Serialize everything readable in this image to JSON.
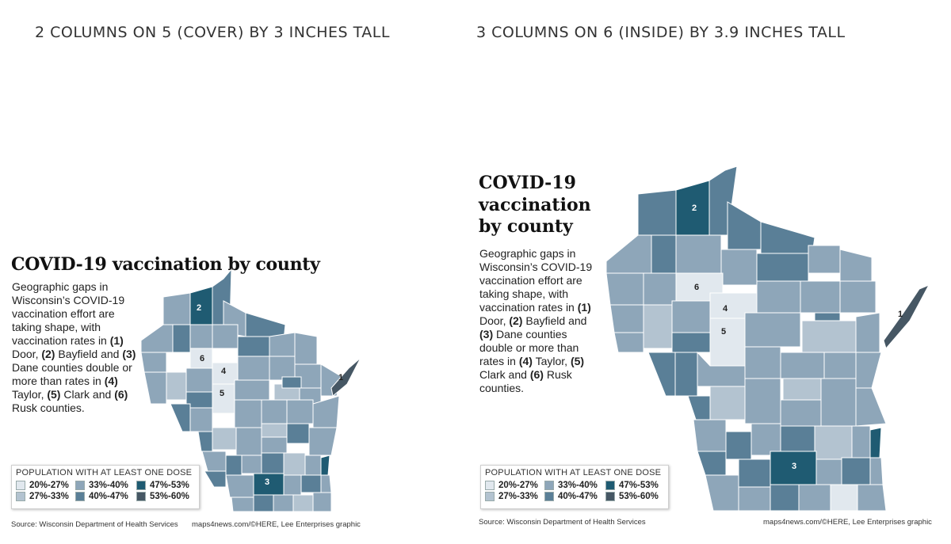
{
  "left_panel": {
    "heading": "2 COLUMNS ON 5 (COVER) BY 3 INCHES TALL",
    "title": "COVID-19 vaccination by county",
    "description": [
      {
        "t": "Geographic gaps in Wisconsin’s COVID-19 vaccination effort are taking shape, with vaccination rates in ",
        "b": false
      },
      {
        "t": "(1)",
        "b": true
      },
      {
        "t": " Door, ",
        "b": false
      },
      {
        "t": "(2)",
        "b": true
      },
      {
        "t": " Bayfield and ",
        "b": false
      },
      {
        "t": "(3)",
        "b": true
      },
      {
        "t": " Dane counties double or more than rates in ",
        "b": false
      },
      {
        "t": "(4)",
        "b": true
      },
      {
        "t": " Taylor, ",
        "b": false
      },
      {
        "t": "(5)",
        "b": true
      },
      {
        "t": " Clark and ",
        "b": false
      },
      {
        "t": "(6)",
        "b": true
      },
      {
        "t": " Rusk counties.",
        "b": false
      }
    ],
    "legend_title": "POPULATION WITH AT LEAST ONE DOSE",
    "source": "Source: Wisconsin Department of Health Services",
    "credit": "maps4news.com/©HERE, Lee Enterprises graphic"
  },
  "right_panel": {
    "heading": "3 COLUMNS ON 6 (INSIDE) BY 3.9 INCHES TALL",
    "title": "COVID-19 vaccination by county",
    "description": [
      {
        "t": "Geographic gaps in Wisconsin’s COVID-19 vaccination effort are taking shape, with vaccination rates in ",
        "b": false
      },
      {
        "t": "(1)",
        "b": true
      },
      {
        "t": " Door, ",
        "b": false
      },
      {
        "t": "(2)",
        "b": true
      },
      {
        "t": " Bayfield and ",
        "b": false
      },
      {
        "t": "(3)",
        "b": true
      },
      {
        "t": " Dane counties double or more than rates in ",
        "b": false
      },
      {
        "t": "(4)",
        "b": true
      },
      {
        "t": " Taylor, ",
        "b": false
      },
      {
        "t": "(5)",
        "b": true
      },
      {
        "t": " Clark and ",
        "b": false
      },
      {
        "t": "(6)",
        "b": true
      },
      {
        "t": " Rusk counties.",
        "b": false
      }
    ],
    "legend_title": "POPULATION WITH AT LEAST ONE DOSE",
    "source": "Source: Wisconsin Department of Health Services",
    "credit": "maps4news.com/©HERE, Lee Enterprises graphic"
  },
  "legend": [
    {
      "label": "20%-27%",
      "color": "#e1e8ee"
    },
    {
      "label": "33%-40%",
      "color": "#8ea6b9"
    },
    {
      "label": "47%-53%",
      "color": "#1f5b72"
    },
    {
      "label": "27%-33%",
      "color": "#b3c3d0"
    },
    {
      "label": "40%-47%",
      "color": "#5a7f97"
    },
    {
      "label": "53%-60%",
      "color": "#465764"
    }
  ],
  "map_markers": [
    {
      "id": "1",
      "county": "Door"
    },
    {
      "id": "2",
      "county": "Bayfield"
    },
    {
      "id": "3",
      "county": "Dane"
    },
    {
      "id": "4",
      "county": "Taylor"
    },
    {
      "id": "5",
      "county": "Clark"
    },
    {
      "id": "6",
      "county": "Rusk"
    }
  ]
}
